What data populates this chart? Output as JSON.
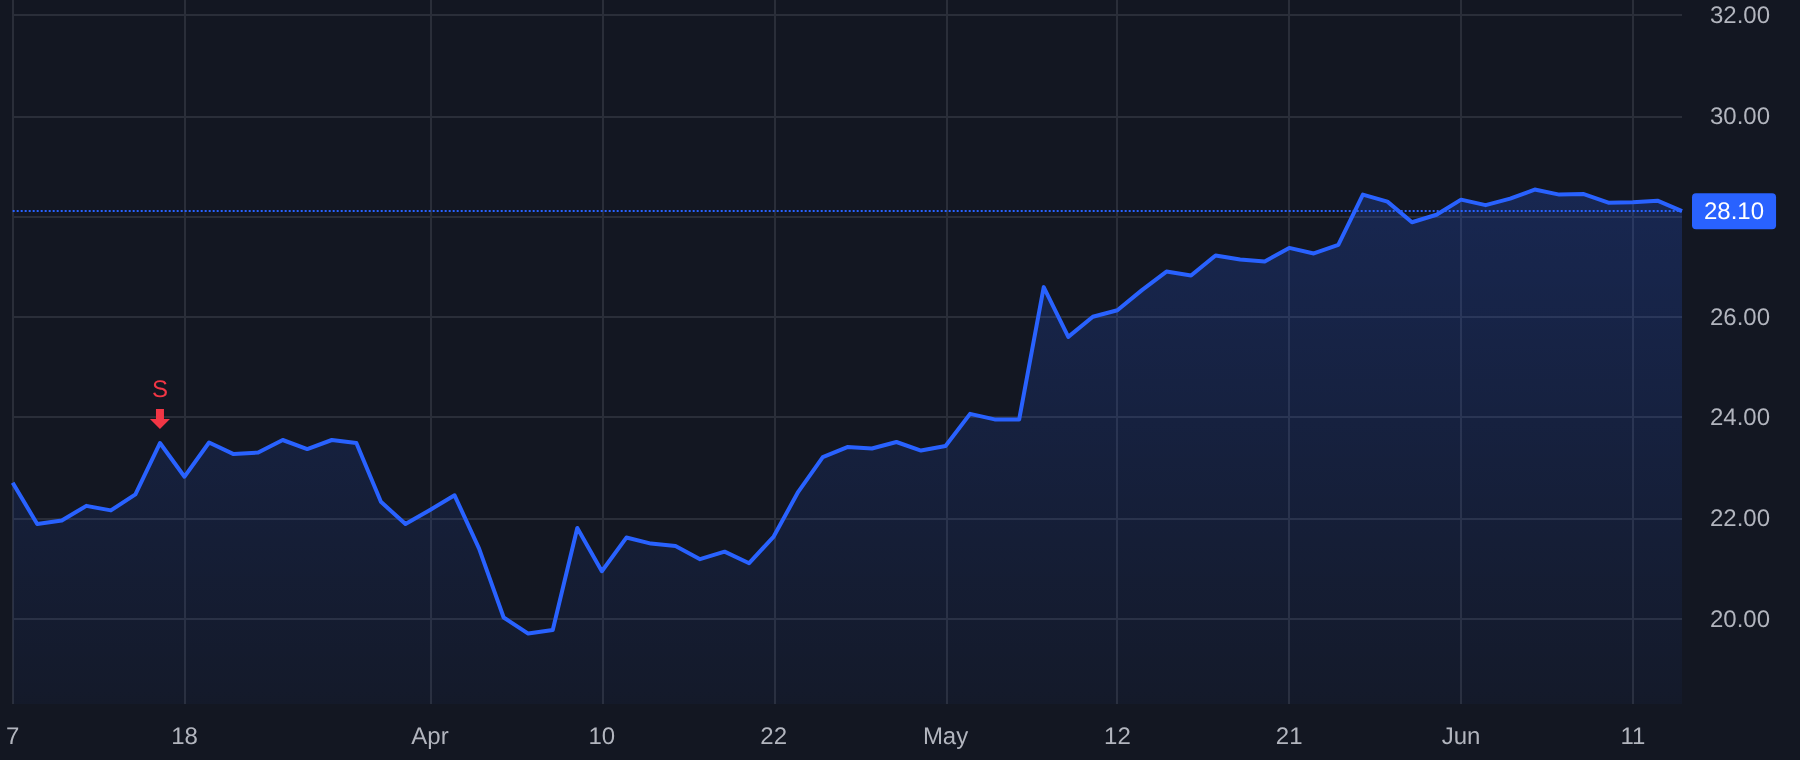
{
  "chart_data": {
    "type": "area",
    "categories": [
      "7",
      null,
      null,
      null,
      null,
      null,
      null,
      "18",
      null,
      null,
      null,
      null,
      null,
      null,
      null,
      null,
      null,
      "Apr",
      null,
      null,
      null,
      null,
      null,
      null,
      "10",
      null,
      null,
      null,
      null,
      null,
      null,
      "22",
      null,
      null,
      null,
      null,
      null,
      null,
      "May",
      null,
      null,
      null,
      null,
      null,
      null,
      "12",
      null,
      null,
      null,
      null,
      null,
      null,
      "21",
      null,
      null,
      null,
      null,
      null,
      null,
      "Jun",
      null,
      null,
      null,
      null,
      null,
      null,
      "11",
      null,
      null
    ],
    "series": [
      {
        "color": "#2962ff",
        "values": [
          22.7,
          21.88,
          21.95,
          22.24,
          22.15,
          22.47,
          23.49,
          22.82,
          23.5,
          23.27,
          23.3,
          23.55,
          23.37,
          23.55,
          23.49,
          22.32,
          21.88,
          22.16,
          22.45,
          21.39,
          20.02,
          19.7,
          19.77,
          21.8,
          20.94,
          21.61,
          21.49,
          21.44,
          21.18,
          21.33,
          21.1,
          21.63,
          22.52,
          23.21,
          23.41,
          23.38,
          23.51,
          23.34,
          23.43,
          24.07,
          23.96,
          23.96,
          26.59,
          25.6,
          26.0,
          26.13,
          26.53,
          26.9,
          26.82,
          27.22,
          27.14,
          27.1,
          27.37,
          27.26,
          27.43,
          28.43,
          28.29,
          27.88,
          28.03,
          28.33,
          28.22,
          28.35,
          28.53,
          28.43,
          28.44,
          28.27,
          28.28,
          28.31,
          28.1
        ]
      }
    ],
    "ylim": [
      18.3,
      32.3
    ],
    "yticks": [
      {
        "value": 20,
        "label": "20.00"
      },
      {
        "value": 22,
        "label": "22.00"
      },
      {
        "value": 24,
        "label": "24.00"
      },
      {
        "value": 26,
        "label": "26.00"
      },
      {
        "value": 28,
        "label": null
      },
      {
        "value": 30,
        "label": "30.00"
      },
      {
        "value": 32,
        "label": "32.00"
      }
    ],
    "grid": true,
    "ref_lines": [
      {
        "axis": "y",
        "value": 28.1,
        "label": "28.10",
        "color": "#2962ff",
        "line_style": "dotted"
      }
    ],
    "annotations": [
      {
        "text": "S",
        "y": 23.49
      }
    ]
  }
}
